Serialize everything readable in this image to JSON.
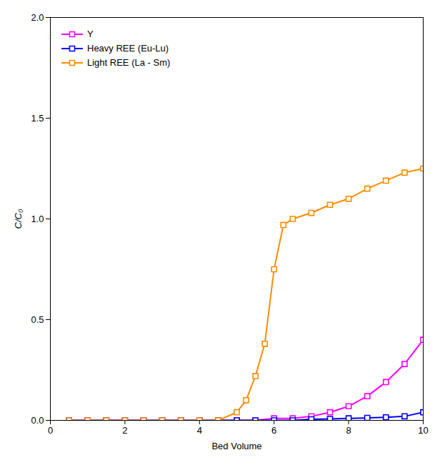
{
  "chart_data": {
    "type": "line",
    "xlabel": "Bed Volume",
    "ylabel": "C/C₀",
    "xlim": [
      0,
      10
    ],
    "ylim": [
      0,
      2.0
    ],
    "xticks": [
      0,
      2,
      4,
      6,
      8,
      10
    ],
    "yticks": [
      {
        "value": 0.0,
        "label": "0.0"
      },
      0.5,
      {
        "value": 1.0,
        "label": "1.0"
      },
      1.5,
      {
        "value": 2.0,
        "label": "2.0"
      }
    ],
    "grid": false,
    "legend": "upper left",
    "marker": "square",
    "series": [
      {
        "name": "Y",
        "color": "#FF00FF",
        "x": [
          0.5,
          1.0,
          1.5,
          2.0,
          2.5,
          3.0,
          3.5,
          4.0,
          4.5,
          5.0,
          5.5,
          6.0,
          6.5,
          7.0,
          7.5,
          8.0,
          8.5,
          9.0,
          9.5,
          10.0
        ],
        "values": [
          0.0,
          0.0,
          0.0,
          0.0,
          0.0,
          0.0,
          0.0,
          0.0,
          0.0,
          0.0,
          0.0,
          0.01,
          0.01,
          0.02,
          0.04,
          0.07,
          0.12,
          0.19,
          0.28,
          0.4
        ]
      },
      {
        "name": "Heavy REE (Eu-Lu)",
        "color": "#0000FF",
        "x": [
          0.5,
          1.0,
          1.5,
          2.0,
          2.5,
          3.0,
          3.5,
          4.0,
          4.5,
          5.0,
          5.5,
          6.0,
          6.5,
          7.0,
          7.5,
          8.0,
          8.5,
          9.0,
          9.5,
          10.0
        ],
        "values": [
          0.0,
          0.0,
          0.0,
          0.0,
          0.0,
          0.0,
          0.0,
          0.0,
          0.0,
          0.0,
          0.0,
          0.0,
          0.0,
          0.005,
          0.007,
          0.01,
          0.012,
          0.015,
          0.02,
          0.04
        ]
      },
      {
        "name": "Light REE (La - Sm)",
        "color": "#FF8C00",
        "x": [
          0.5,
          1.0,
          1.5,
          2.0,
          2.5,
          3.0,
          3.5,
          4.0,
          4.5,
          5.0,
          5.25,
          5.5,
          5.75,
          6.0,
          6.25,
          6.5,
          7.0,
          7.5,
          8.0,
          8.5,
          9.0,
          9.5,
          10.0
        ],
        "values": [
          0.0,
          0.0,
          0.0,
          0.0,
          0.0,
          0.0,
          0.0,
          0.0,
          0.0,
          0.04,
          0.1,
          0.22,
          0.38,
          0.75,
          0.97,
          1.0,
          1.03,
          1.07,
          1.1,
          1.15,
          1.19,
          1.23,
          1.25
        ]
      }
    ]
  }
}
